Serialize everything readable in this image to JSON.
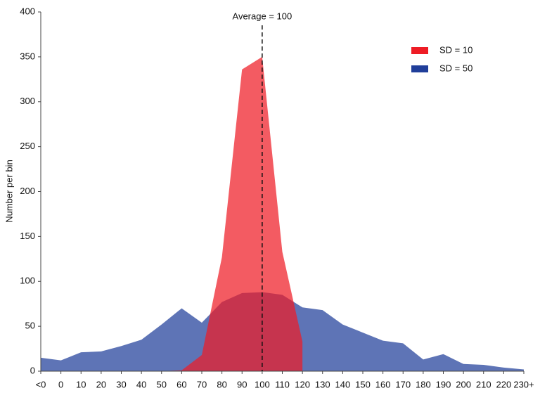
{
  "chart_data": {
    "type": "area",
    "y_label": "Number per bin",
    "categories": [
      "<0",
      "0",
      "10",
      "20",
      "30",
      "40",
      "50",
      "60",
      "70",
      "80",
      "90",
      "100",
      "110",
      "120",
      "130",
      "140",
      "150",
      "160",
      "170",
      "180",
      "190",
      "200",
      "210",
      "220",
      "230+"
    ],
    "series": [
      {
        "name": "SD = 50",
        "color": "#203e9a",
        "values": [
          15,
          12,
          21,
          22,
          28,
          35,
          52,
          70,
          54,
          77,
          87,
          88,
          85,
          71,
          68,
          52,
          43,
          34,
          31,
          13,
          19,
          8,
          7,
          4,
          2
        ]
      },
      {
        "name": "SD = 10",
        "color": "#ee1c25",
        "values": [
          null,
          null,
          null,
          null,
          null,
          null,
          0,
          1,
          18,
          127,
          336,
          350,
          133,
          33,
          null,
          null,
          null,
          null,
          null,
          null,
          null,
          null,
          null,
          null,
          null
        ]
      }
    ],
    "legend_order": [
      1,
      0
    ],
    "ylim": [
      0,
      400
    ],
    "yticks": [
      0,
      50,
      100,
      150,
      200,
      250,
      300,
      350,
      400
    ],
    "annotation": {
      "text": "Average = 100",
      "category": "100"
    }
  }
}
